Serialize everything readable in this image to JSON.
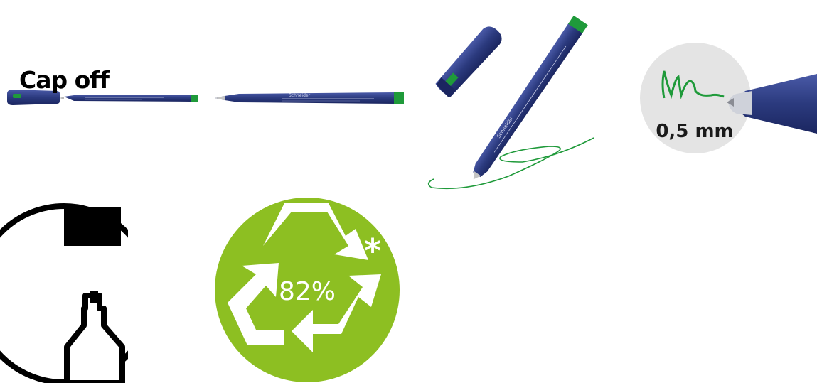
{
  "brand": "Schneider",
  "tip_label": "0,5 mm",
  "cap_label": "Cap off",
  "recycled_label": "82%",
  "recycled_marker": "*",
  "colors": {
    "barrel": "#2b3a7e",
    "ink": "#1f9a3a",
    "recycle_green": "#8dbf22",
    "tip_circle": "#e4e4e4"
  },
  "icons": [
    "pen-capped-image",
    "pen-open-image",
    "pen-writing-image",
    "pen-tip-closeup-image",
    "cap-off-icon",
    "recycle-icon"
  ]
}
